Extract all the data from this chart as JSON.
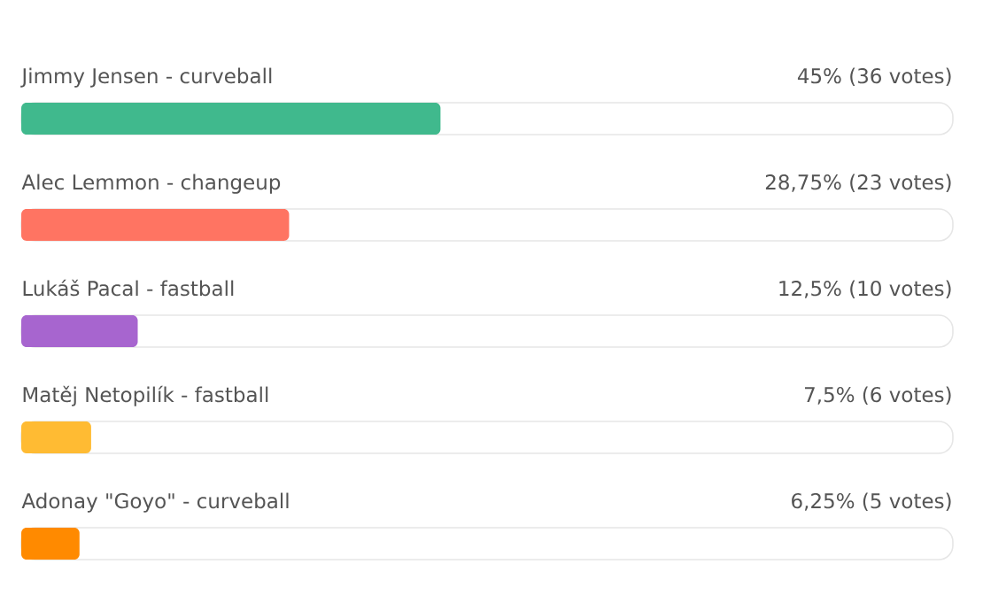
{
  "chart_data": {
    "type": "bar",
    "orientation": "horizontal",
    "categories": [
      "Jimmy Jensen - curveball",
      "Alec Lemmon - changeup",
      "Lukáš Pacal - fastball",
      "Matěj Netopilík - fastball",
      "Adonay \"Goyo\" - curveball"
    ],
    "values": [
      45,
      28.75,
      12.5,
      7.5,
      6.25
    ],
    "colors": [
      "#40b98d",
      "#ff7462",
      "#a765cf",
      "#ffbb33",
      "#ff8a00"
    ],
    "value_labels": [
      "45% (36 votes)",
      "28,75% (23 votes)",
      "12,5% (10 votes)",
      "7,5% (6 votes)",
      "6,25% (5 votes)"
    ],
    "xlim": [
      0,
      100
    ],
    "tick_labels": false
  }
}
